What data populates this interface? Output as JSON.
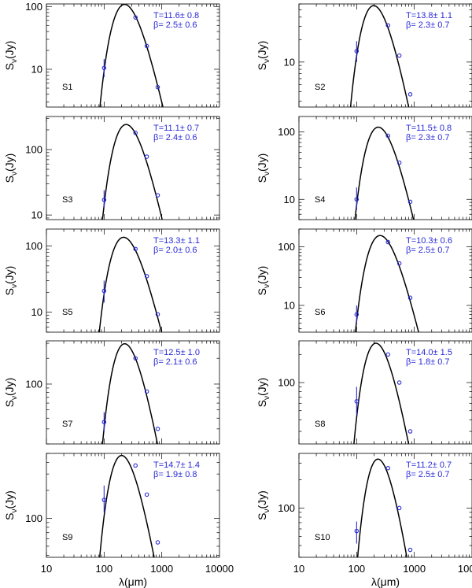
{
  "chart_data": [
    {
      "type": "scatter",
      "title": "S1",
      "annotations": [
        "T=11.6± 0.8",
        "β= 2.5± 0.6"
      ],
      "ylim": [
        2.5,
        110
      ],
      "yticks": [
        10,
        100
      ],
      "ylabel": "S_ν(Jy)",
      "xlabel": "",
      "xlim": [
        10,
        10000
      ],
      "xscale": "log",
      "yscale": "log",
      "points": [
        {
          "x": 100,
          "y": 10.5,
          "err": [
            7.5,
            14.5
          ]
        },
        {
          "x": 350,
          "y": 67
        },
        {
          "x": 550,
          "y": 23.5
        },
        {
          "x": 850,
          "y": 5.2
        }
      ],
      "fit": {
        "T": 11.6,
        "beta": 2.5,
        "peak": [
          220,
          108
        ]
      }
    },
    {
      "type": "scatter",
      "title": "S2",
      "annotations": [
        "T=13.8± 1.1",
        "β= 2.3± 0.7"
      ],
      "ylim": [
        2.5,
        60
      ],
      "yticks": [
        10
      ],
      "ylabel": "S_ν(Jy)",
      "xlabel": "",
      "xlim": [
        10,
        10000
      ],
      "xscale": "log",
      "yscale": "log",
      "points": [
        {
          "x": 100,
          "y": 14,
          "err": [
            10,
            19
          ]
        },
        {
          "x": 350,
          "y": 31
        },
        {
          "x": 550,
          "y": 12.2
        },
        {
          "x": 850,
          "y": 3.7
        }
      ],
      "fit": {
        "T": 13.8,
        "beta": 2.3,
        "peak": [
          240,
          52
        ]
      }
    },
    {
      "type": "scatter",
      "title": "S3",
      "annotations": [
        "T=11.1± 0.7",
        "β= 2.4± 0.6"
      ],
      "ylim": [
        8.5,
        320
      ],
      "yticks": [
        10,
        100
      ],
      "ylabel": "S_ν(Jy)",
      "xlabel": "",
      "xlim": [
        10,
        10000
      ],
      "xscale": "log",
      "yscale": "log",
      "points": [
        {
          "x": 100,
          "y": 17,
          "err": [
            13,
            24
          ]
        },
        {
          "x": 350,
          "y": 180
        },
        {
          "x": 550,
          "y": 78
        },
        {
          "x": 850,
          "y": 20
        }
      ],
      "fit": {
        "T": 11.1,
        "beta": 2.4,
        "peak": [
          230,
          240
        ]
      }
    },
    {
      "type": "scatter",
      "title": "S4",
      "annotations": [
        "T=11.5± 0.8",
        "β= 2.3± 0.7"
      ],
      "ylim": [
        5,
        170
      ],
      "yticks": [
        10,
        100
      ],
      "ylabel": "S_ν(Jy)",
      "xlabel": "",
      "xlim": [
        10,
        10000
      ],
      "xscale": "log",
      "yscale": "log",
      "points": [
        {
          "x": 100,
          "y": 10,
          "err": [
            7,
            15
          ]
        },
        {
          "x": 350,
          "y": 88
        },
        {
          "x": 550,
          "y": 35
        },
        {
          "x": 850,
          "y": 9.2
        }
      ],
      "fit": {
        "T": 11.5,
        "beta": 2.3,
        "peak": [
          240,
          118
        ]
      }
    },
    {
      "type": "scatter",
      "title": "S5",
      "annotations": [
        "T=13.3± 1.1",
        "β= 2.0± 0.6"
      ],
      "ylim": [
        5,
        180
      ],
      "yticks": [
        10,
        100
      ],
      "ylabel": "S_ν(Jy)",
      "xlabel": "",
      "xlim": [
        10,
        10000
      ],
      "xscale": "log",
      "yscale": "log",
      "points": [
        {
          "x": 100,
          "y": 21,
          "err": [
            14,
            30
          ]
        },
        {
          "x": 350,
          "y": 90
        },
        {
          "x": 550,
          "y": 35
        },
        {
          "x": 850,
          "y": 9.3
        }
      ],
      "fit": {
        "T": 13.3,
        "beta": 2.0,
        "peak": [
          225,
          135
        ]
      }
    },
    {
      "type": "scatter",
      "title": "S6",
      "annotations": [
        "T=10.3± 0.6",
        "β= 2.5± 0.7"
      ],
      "ylim": [
        3.5,
        200
      ],
      "yticks": [
        10,
        100
      ],
      "ylabel": "S_ν(Jy)",
      "xlabel": "",
      "xlim": [
        10,
        10000
      ],
      "xscale": "log",
      "yscale": "log",
      "points": [
        {
          "x": 100,
          "y": 7,
          "err": [
            5,
            10
          ]
        },
        {
          "x": 350,
          "y": 120
        },
        {
          "x": 550,
          "y": 52
        },
        {
          "x": 850,
          "y": 13.5
        }
      ],
      "fit": {
        "T": 10.3,
        "beta": 2.5,
        "peak": [
          260,
          155
        ]
      }
    },
    {
      "type": "scatter",
      "title": "S7",
      "annotations": [
        "T=12.5± 1.0",
        "β= 2.1± 0.6"
      ],
      "ylim": [
        20,
        320
      ],
      "yticks": [
        100
      ],
      "ylabel": "S_ν(Jy)",
      "xlabel": "",
      "xlim": [
        10,
        10000
      ],
      "xscale": "log",
      "yscale": "log",
      "points": [
        {
          "x": 100,
          "y": 36,
          "err": [
            28,
            47
          ]
        },
        {
          "x": 350,
          "y": 200
        },
        {
          "x": 550,
          "y": 82
        },
        {
          "x": 850,
          "y": 30
        }
      ],
      "fit": {
        "T": 12.5,
        "beta": 2.1,
        "peak": [
          235,
          295
        ]
      }
    },
    {
      "type": "scatter",
      "title": "S8",
      "annotations": [
        "T=14.0± 1.5",
        "β= 1.8± 0.7"
      ],
      "ylim": [
        22,
        280
      ],
      "yticks": [
        100
      ],
      "ylabel": "S_ν(Jy)",
      "xlabel": "",
      "xlim": [
        10,
        10000
      ],
      "xscale": "log",
      "yscale": "log",
      "points": [
        {
          "x": 100,
          "y": 63,
          "err": [
            45,
            90
          ]
        },
        {
          "x": 350,
          "y": 200
        },
        {
          "x": 550,
          "y": 100
        },
        {
          "x": 850,
          "y": 30
        }
      ],
      "fit": {
        "T": 14.0,
        "beta": 1.8,
        "peak": [
          245,
          255
        ]
      }
    },
    {
      "type": "scatter",
      "title": "S9",
      "annotations": [
        "T=14.7± 1.4",
        "β= 1.9± 0.8"
      ],
      "ylim": [
        38,
        500
      ],
      "yticks": [
        100
      ],
      "ylabel": "S_ν(Jy)",
      "xlabel": "λ(μm)",
      "xlim": [
        10,
        10000
      ],
      "xscale": "log",
      "yscale": "log",
      "points": [
        {
          "x": 100,
          "y": 158,
          "err": [
            115,
            225
          ]
        },
        {
          "x": 350,
          "y": 370
        },
        {
          "x": 550,
          "y": 180
        },
        {
          "x": 850,
          "y": 55
        }
      ],
      "fit": {
        "T": 14.7,
        "beta": 1.9,
        "peak": [
          215,
          470
        ]
      }
    },
    {
      "type": "scatter",
      "title": "S10",
      "annotations": [
        "T=11.2± 0.7",
        "β= 2.5± 0.7"
      ],
      "ylim": [
        30,
        380
      ],
      "yticks": [
        100
      ],
      "ylabel": "S_ν(Jy)",
      "xlabel": "λ(μm)",
      "xlim": [
        10,
        10000
      ],
      "xscale": "log",
      "yscale": "log",
      "points": [
        {
          "x": 100,
          "y": 57,
          "err": [
            42,
            72
          ]
        },
        {
          "x": 350,
          "y": 265
        },
        {
          "x": 550,
          "y": 100
        },
        {
          "x": 850,
          "y": 36
        }
      ],
      "fit": {
        "T": 11.2,
        "beta": 2.5,
        "peak": [
          240,
          330
        ]
      }
    }
  ],
  "xtick_labels": [
    "10",
    "100",
    "1000",
    "10000"
  ]
}
